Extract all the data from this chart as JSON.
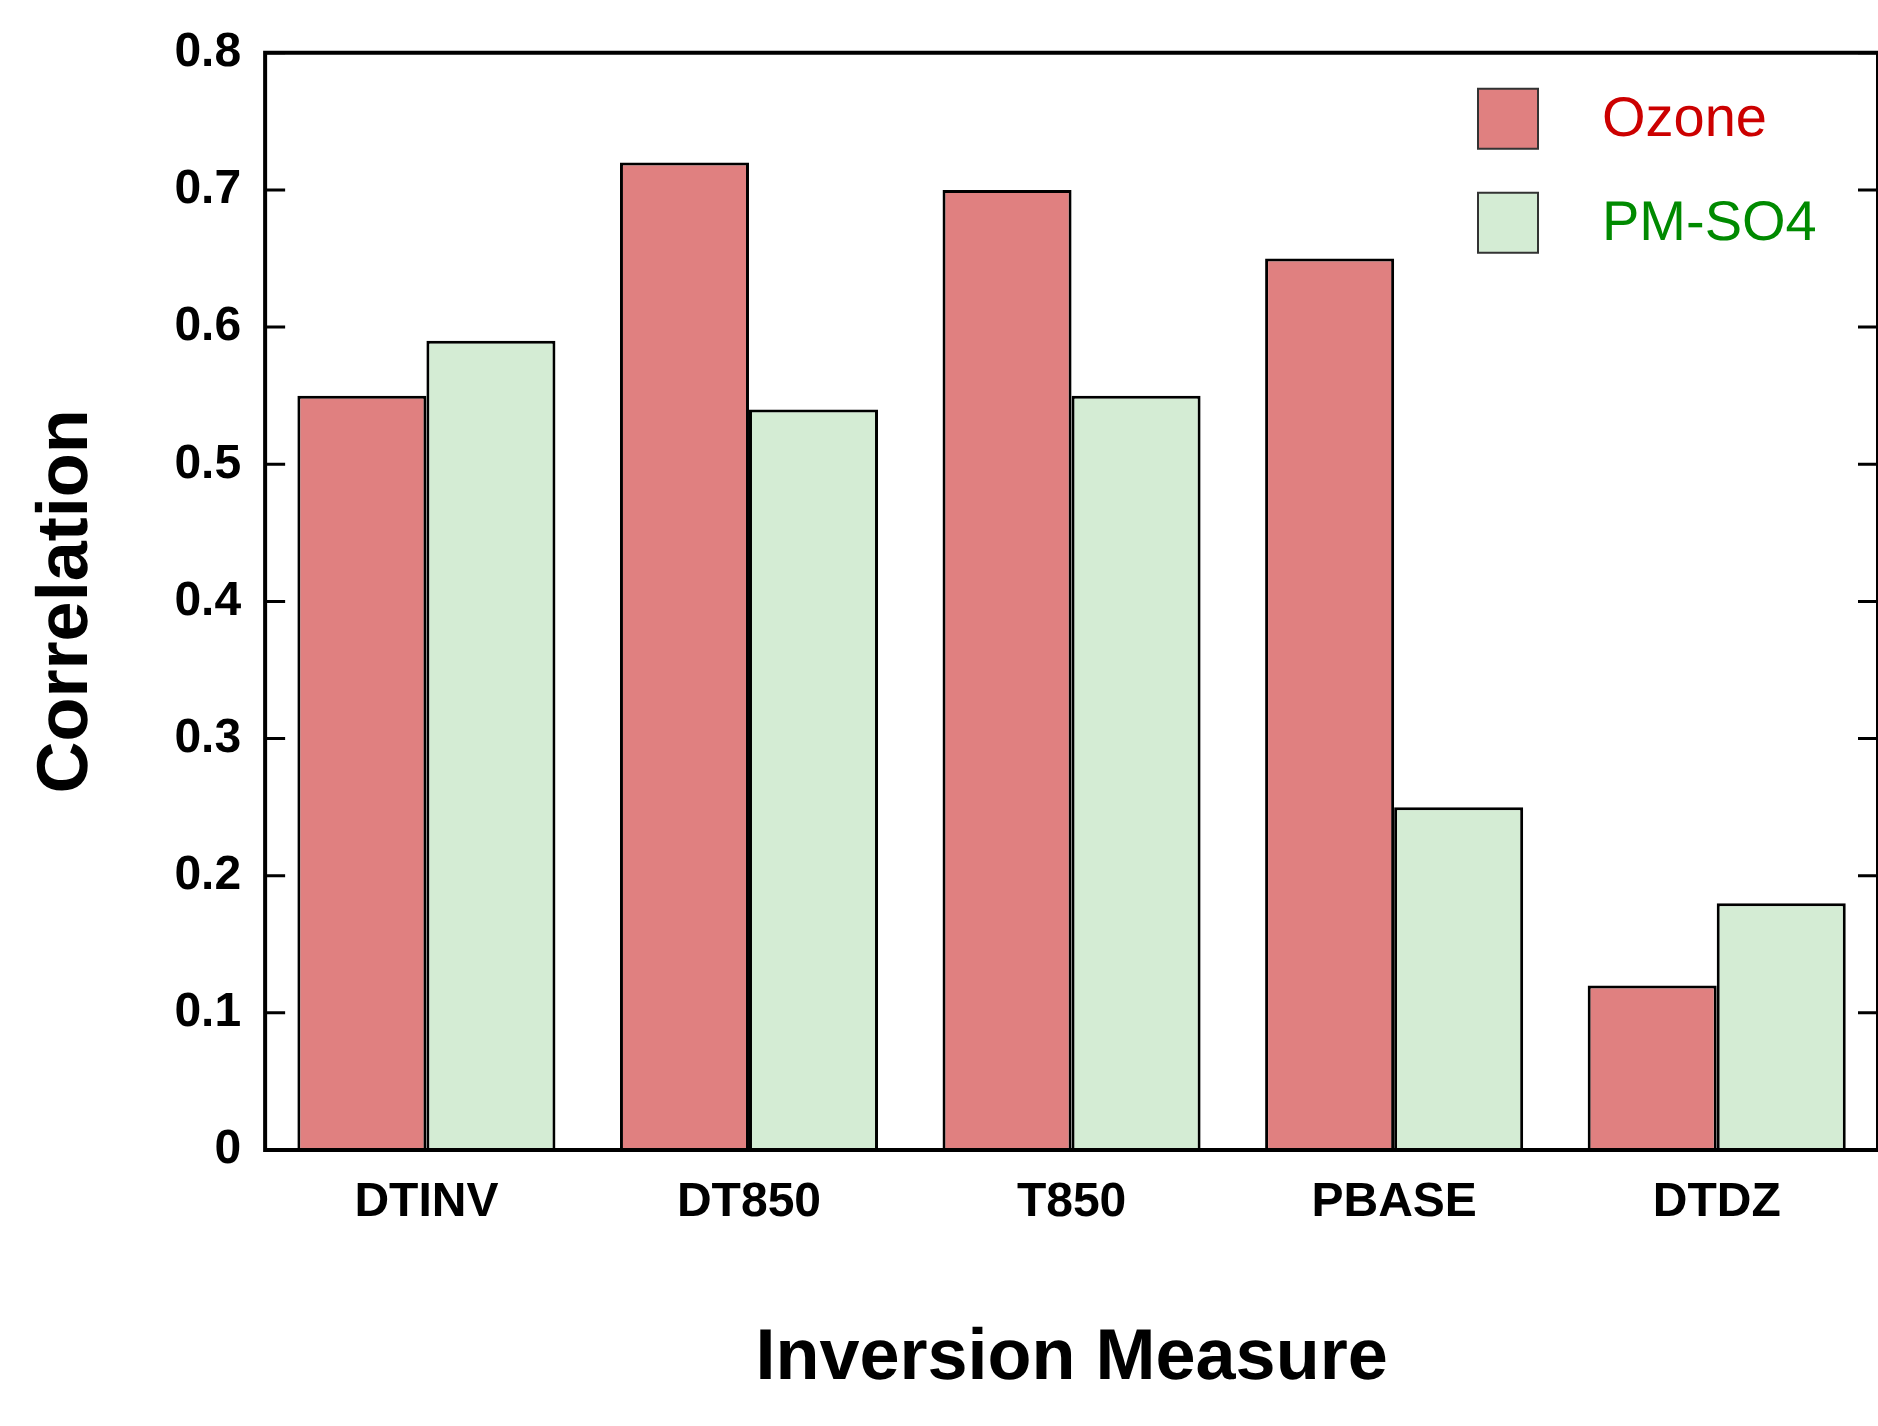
{
  "chart_data": {
    "type": "bar",
    "xlabel": "Inversion Measure",
    "ylabel": "Correlation",
    "categories": [
      "DTINV",
      "DT850",
      "T850",
      "PBASE",
      "DTDZ"
    ],
    "series": [
      {
        "name": "Ozone",
        "color": "#e08080",
        "values": [
          0.55,
          0.72,
          0.7,
          0.65,
          0.12
        ]
      },
      {
        "name": "PM-SO4",
        "color": "#d4ecd4",
        "values": [
          0.59,
          0.54,
          0.55,
          0.25,
          0.18
        ]
      }
    ],
    "ylim": [
      0,
      0.8
    ],
    "yticks": [
      0,
      0.1,
      0.2,
      0.3,
      0.4,
      0.5,
      0.6,
      0.7,
      0.8
    ],
    "grid": false,
    "legend": "top right"
  }
}
